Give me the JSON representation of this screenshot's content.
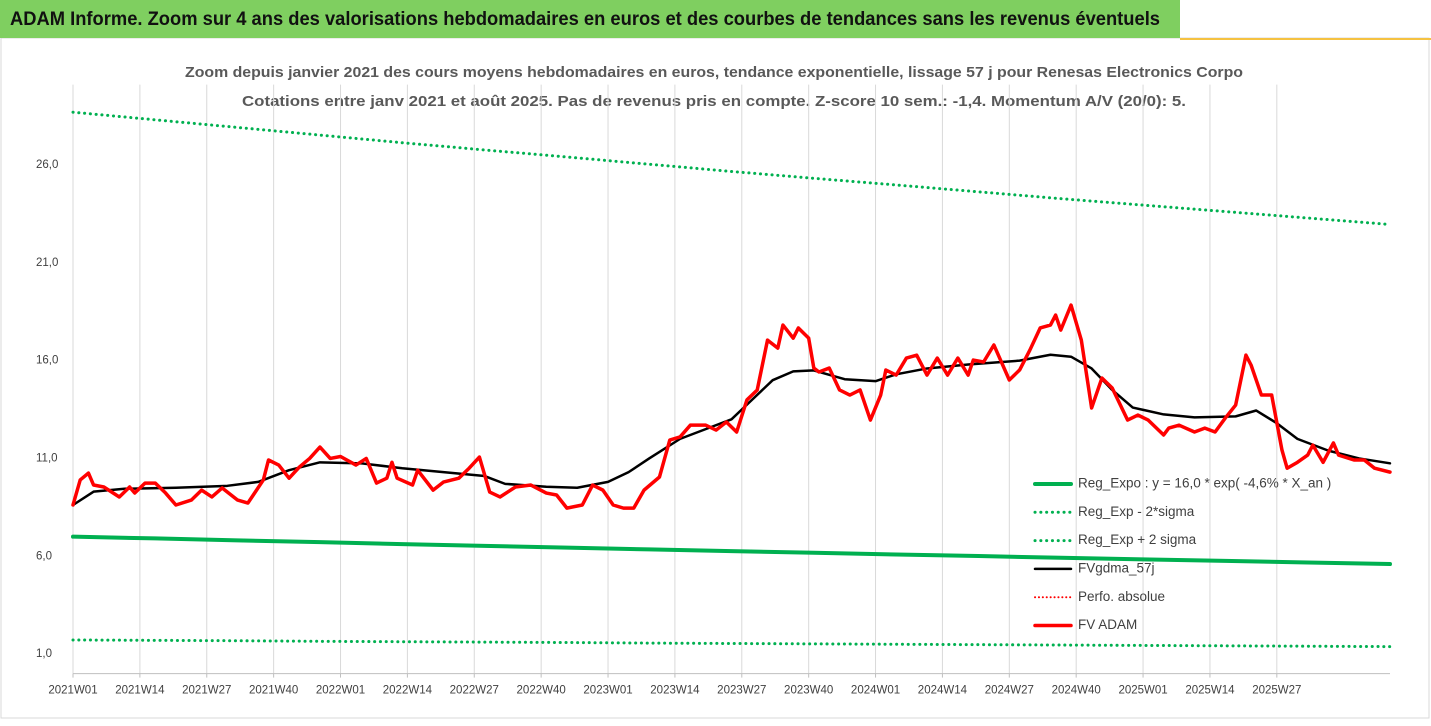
{
  "header": {
    "title": "ADAM Informe. Zoom sur 4 ans des valorisations hebdomadaires en euros et des courbes de tendances sans les revenus éventuels"
  },
  "chart_data": {
    "type": "line",
    "title": "Zoom depuis janvier 2021 des cours moyens hebdomadaires en euros, tendance exponentielle, lissage 57 j pour Renesas Electronics Corpo",
    "subtitle": "Cotations entre janv 2021 et août 2025. Pas de revenus pris en compte. Z-score 10 sem.: -1,4. Momentum A/V (20/0): 5.",
    "xlim": [
      0,
      256
    ],
    "xticks": [
      {
        "value": 0,
        "label": "2021W01"
      },
      {
        "value": 13,
        "label": "2021W14"
      },
      {
        "value": 26,
        "label": "2021W27"
      },
      {
        "value": 39,
        "label": "2021W40"
      },
      {
        "value": 52,
        "label": "2022W01"
      },
      {
        "value": 65,
        "label": "2022W14"
      },
      {
        "value": 78,
        "label": "2022W27"
      },
      {
        "value": 91,
        "label": "2022W40"
      },
      {
        "value": 104,
        "label": "2023W01"
      },
      {
        "value": 117,
        "label": "2023W14"
      },
      {
        "value": 130,
        "label": "2023W27"
      },
      {
        "value": 143,
        "label": "2023W40"
      },
      {
        "value": 156,
        "label": "2024W01"
      },
      {
        "value": 169,
        "label": "2024W14"
      },
      {
        "value": 182,
        "label": "2024W27"
      },
      {
        "value": 195,
        "label": "2024W40"
      },
      {
        "value": 208,
        "label": "2025W01"
      },
      {
        "value": 221,
        "label": "2025W14"
      },
      {
        "value": 234,
        "label": "2025W27"
      }
    ],
    "ylim": [
      0,
      29.6
    ],
    "yticks": [
      {
        "value": 1,
        "label": "1,0"
      },
      {
        "value": 6,
        "label": "6,0"
      },
      {
        "value": 11,
        "label": "11,0"
      },
      {
        "value": 16,
        "label": "16,0"
      },
      {
        "value": 21,
        "label": "21,0"
      },
      {
        "value": 26,
        "label": "26,0"
      }
    ],
    "grid": "x",
    "legend": "lower right",
    "series": [
      {
        "name": "Reg_Expo : y = 16,0 * exp( -4,6% *  X_an )",
        "color": "#00b050",
        "style": "solid",
        "width": 4,
        "x": [
          0,
          16,
          32,
          48,
          64,
          80,
          96,
          112,
          128,
          144,
          160,
          176,
          192,
          208,
          224,
          240,
          256
        ],
        "values": [
          7.0,
          6.91,
          6.81,
          6.72,
          6.62,
          6.53,
          6.44,
          6.35,
          6.26,
          6.18,
          6.09,
          6.01,
          5.92,
          5.84,
          5.76,
          5.68,
          5.6
        ]
      },
      {
        "name": "Reg_Exp - 2*sigma",
        "color": "#00b050",
        "style": "dotted",
        "width": 3,
        "x": [
          0,
          16,
          32,
          48,
          64,
          80,
          96,
          112,
          128,
          144,
          160,
          176,
          192,
          208,
          224,
          240,
          256
        ],
        "values": [
          1.72,
          1.7,
          1.68,
          1.65,
          1.63,
          1.61,
          1.59,
          1.56,
          1.54,
          1.52,
          1.5,
          1.48,
          1.46,
          1.44,
          1.42,
          1.4,
          1.38
        ]
      },
      {
        "name": "Reg_Exp + 2 sigma",
        "color": "#00b050",
        "style": "dotted",
        "width": 3,
        "x": [
          0,
          16,
          32,
          48,
          64,
          80,
          96,
          112,
          128,
          144,
          160,
          176,
          192,
          208,
          224,
          240,
          256
        ],
        "values": [
          28.7,
          28.31,
          27.92,
          27.53,
          27.14,
          26.77,
          26.41,
          26.04,
          25.67,
          25.32,
          24.98,
          24.63,
          24.28,
          23.95,
          23.62,
          23.29,
          22.96
        ]
      },
      {
        "name": "FVgdma_57j",
        "color": "#000000",
        "style": "solid",
        "width": 2.5,
        "x": [
          0,
          4,
          10,
          20,
          30,
          36,
          42,
          48,
          56,
          64,
          72,
          80,
          84,
          92,
          98,
          104,
          108,
          112,
          118,
          124,
          128,
          132,
          136,
          140,
          144,
          150,
          156,
          160,
          166,
          174,
          184,
          190,
          194,
          198,
          202,
          206,
          212,
          218,
          226,
          230,
          234,
          238,
          244,
          250,
          256
        ],
        "values": [
          8.62,
          9.3,
          9.45,
          9.5,
          9.6,
          9.8,
          10.4,
          10.8,
          10.75,
          10.5,
          10.3,
          10.1,
          9.7,
          9.55,
          9.5,
          9.8,
          10.3,
          11.0,
          12.0,
          12.6,
          13.0,
          14.0,
          15.0,
          15.45,
          15.5,
          15.05,
          14.95,
          15.3,
          15.6,
          15.8,
          16.0,
          16.3,
          16.2,
          15.6,
          14.5,
          13.6,
          13.25,
          13.1,
          13.15,
          13.45,
          12.8,
          12.0,
          11.4,
          11.0,
          10.75
        ]
      },
      {
        "name": "Perfo. absolue",
        "color": "#ff0000",
        "style": "dotted",
        "width": 2
      },
      {
        "name": "FV ADAM",
        "color": "#ff0000",
        "style": "solid",
        "width": 3.5,
        "x": [
          0,
          1.4,
          3,
          4,
          6,
          9,
          11,
          12,
          14,
          16,
          18,
          20,
          23,
          25,
          27,
          29,
          32,
          34,
          37,
          38,
          40,
          42,
          44,
          46,
          48,
          50,
          52,
          55,
          57,
          59,
          61,
          62,
          63,
          66,
          67,
          70,
          72,
          75,
          77,
          79,
          81,
          83,
          86,
          89,
          92,
          94,
          96,
          99,
          101,
          103,
          105,
          107,
          109,
          111,
          114,
          116,
          118,
          120,
          123,
          125,
          127,
          129,
          131,
          133,
          135,
          137,
          138,
          140,
          141,
          143,
          144,
          145,
          147,
          149,
          151,
          153,
          155,
          157,
          158,
          160,
          162,
          164,
          166,
          168,
          170,
          172,
          174,
          175,
          177,
          179,
          182,
          184,
          186,
          188,
          190,
          191,
          192,
          194,
          196,
          198,
          200,
          202,
          205,
          207,
          209,
          212,
          213,
          215,
          218,
          220,
          222,
          224,
          226,
          228,
          229,
          231,
          233,
          235,
          236,
          238,
          240,
          241,
          243,
          245,
          246,
          249,
          251,
          253,
          256
        ],
        "values": [
          8.62,
          9.9,
          10.25,
          9.64,
          9.54,
          9.03,
          9.54,
          9.23,
          9.74,
          9.74,
          9.23,
          8.62,
          8.87,
          9.38,
          9.03,
          9.49,
          8.87,
          8.72,
          9.9,
          10.92,
          10.66,
          9.99,
          10.56,
          11.0,
          11.58,
          11.0,
          11.1,
          10.66,
          11.0,
          9.74,
          9.99,
          10.8,
          9.99,
          9.64,
          10.4,
          9.38,
          9.79,
          9.99,
          10.5,
          11.07,
          9.28,
          9.03,
          9.54,
          9.64,
          9.23,
          9.13,
          8.46,
          8.62,
          9.64,
          9.38,
          8.62,
          8.46,
          8.46,
          9.38,
          10.05,
          11.94,
          12.1,
          12.7,
          12.7,
          12.45,
          12.86,
          12.35,
          13.99,
          14.5,
          17.05,
          16.64,
          17.82,
          17.15,
          17.67,
          17.15,
          15.62,
          15.42,
          15.62,
          14.5,
          14.24,
          14.5,
          12.96,
          14.24,
          15.52,
          15.26,
          16.13,
          16.28,
          15.26,
          16.13,
          15.26,
          16.13,
          15.26,
          16.03,
          15.93,
          16.8,
          15.01,
          15.52,
          16.54,
          17.67,
          17.82,
          18.33,
          17.56,
          18.84,
          17.05,
          13.58,
          15.11,
          14.6,
          12.96,
          13.22,
          12.96,
          12.2,
          12.55,
          12.7,
          12.35,
          12.55,
          12.35,
          13.07,
          13.73,
          16.28,
          15.77,
          14.24,
          14.24,
          11.43,
          10.5,
          10.8,
          11.17,
          11.68,
          10.8,
          11.79,
          11.17,
          10.92,
          10.92,
          10.5,
          10.3
        ]
      }
    ]
  }
}
